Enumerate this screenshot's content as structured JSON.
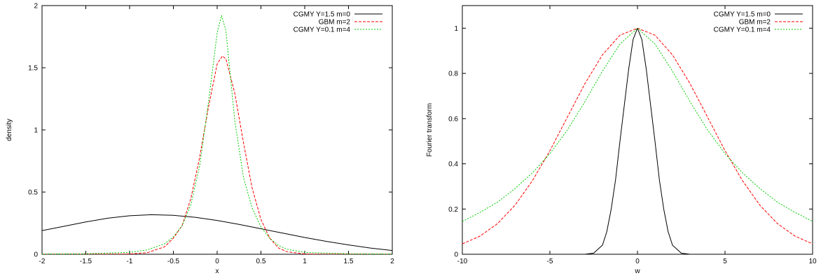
{
  "chart_data": [
    {
      "type": "line",
      "title": "",
      "xlabel": "x",
      "ylabel": "density",
      "xlim": [
        -2,
        2
      ],
      "ylim": [
        0,
        2
      ],
      "xticks": [
        "-2",
        "-1.5",
        "-1",
        "-0.5",
        "0",
        "0.5",
        "1",
        "1.5",
        "2"
      ],
      "yticks": [
        "0",
        "0.5",
        "1",
        "1.5",
        "2"
      ],
      "grid": false,
      "legend_position": "top-right",
      "series": [
        {
          "name": "CGMY Y=1.5 m=0",
          "color": "#000000",
          "dash": "solid",
          "x": [
            -2,
            -1.75,
            -1.5,
            -1.25,
            -1.0,
            -0.75,
            -0.5,
            -0.25,
            0.0,
            0.25,
            0.5,
            0.75,
            1.0,
            1.25,
            1.5,
            1.75,
            2.0
          ],
          "y": [
            0.19,
            0.225,
            0.26,
            0.29,
            0.31,
            0.318,
            0.313,
            0.297,
            0.272,
            0.24,
            0.205,
            0.17,
            0.135,
            0.103,
            0.075,
            0.05,
            0.03
          ]
        },
        {
          "name": "GBM m=2",
          "color": "#ff0000",
          "dash": "dashed",
          "x": [
            -2,
            -1.5,
            -1.0,
            -0.8,
            -0.6,
            -0.5,
            -0.4,
            -0.3,
            -0.2,
            -0.1,
            0.0,
            0.06,
            0.1,
            0.2,
            0.3,
            0.4,
            0.5,
            0.6,
            0.7,
            0.8,
            1.0,
            1.5,
            2.0
          ],
          "y": [
            0,
            0,
            0.002,
            0.012,
            0.06,
            0.13,
            0.23,
            0.45,
            0.78,
            1.18,
            1.53,
            1.595,
            1.57,
            1.3,
            0.9,
            0.53,
            0.28,
            0.13,
            0.05,
            0.02,
            0.002,
            0,
            0
          ]
        },
        {
          "name": "CGMY Y=0.1 m=4",
          "color": "#00cc00",
          "dash": "dotted",
          "x": [
            -2,
            -1.5,
            -1.0,
            -0.8,
            -0.6,
            -0.5,
            -0.4,
            -0.3,
            -0.2,
            -0.1,
            0.0,
            0.05,
            0.1,
            0.2,
            0.3,
            0.4,
            0.5,
            0.6,
            0.7,
            0.8,
            1.0,
            1.5,
            2.0
          ],
          "y": [
            0.002,
            0.004,
            0.015,
            0.035,
            0.085,
            0.14,
            0.23,
            0.4,
            0.71,
            1.22,
            1.78,
            1.92,
            1.8,
            1.08,
            0.62,
            0.37,
            0.22,
            0.13,
            0.07,
            0.04,
            0.015,
            0.004,
            0.002
          ]
        }
      ]
    },
    {
      "type": "line",
      "title": "",
      "xlabel": "w",
      "ylabel": "Fourier transform",
      "xlim": [
        -10,
        10
      ],
      "ylim": [
        0,
        1.1
      ],
      "xticks": [
        "-10",
        "-5",
        "0",
        "5",
        "10"
      ],
      "yticks": [
        "0",
        "0.2",
        "0.4",
        "0.6",
        "0.8",
        "1"
      ],
      "grid": false,
      "legend_position": "top-right",
      "series": [
        {
          "name": "CGMY Y=1.5 m=0",
          "color": "#000000",
          "dash": "solid",
          "x": [
            -10,
            -3,
            -2.5,
            -2,
            -1.75,
            -1.5,
            -1.25,
            -1,
            -0.75,
            -0.5,
            -0.25,
            0,
            0.25,
            0.5,
            0.75,
            1,
            1.25,
            1.5,
            1.75,
            2,
            2.5,
            3,
            10
          ],
          "y": [
            0,
            0.0,
            0.005,
            0.04,
            0.1,
            0.2,
            0.33,
            0.5,
            0.66,
            0.82,
            0.95,
            1.0,
            0.95,
            0.82,
            0.66,
            0.5,
            0.33,
            0.2,
            0.1,
            0.04,
            0.005,
            0.0,
            0
          ]
        },
        {
          "name": "GBM m=2",
          "color": "#ff0000",
          "dash": "dashed",
          "x": [
            -10,
            -9,
            -8,
            -7,
            -6,
            -5,
            -4,
            -3,
            -2,
            -1,
            0,
            1,
            2,
            3,
            4,
            5,
            6,
            7,
            8,
            9,
            10
          ],
          "y": [
            0.046,
            0.08,
            0.135,
            0.216,
            0.325,
            0.458,
            0.607,
            0.755,
            0.882,
            0.969,
            1.0,
            0.969,
            0.882,
            0.755,
            0.607,
            0.458,
            0.325,
            0.216,
            0.135,
            0.08,
            0.046
          ]
        },
        {
          "name": "CGMY Y=0.1 m=4",
          "color": "#00cc00",
          "dash": "dotted",
          "x": [
            -10,
            -9,
            -8,
            -7,
            -6,
            -5,
            -4,
            -3,
            -2,
            -1,
            0,
            1,
            2,
            3,
            4,
            5,
            6,
            7,
            8,
            9,
            10
          ],
          "y": [
            0.145,
            0.185,
            0.23,
            0.29,
            0.36,
            0.445,
            0.55,
            0.675,
            0.81,
            0.93,
            1.0,
            0.93,
            0.81,
            0.675,
            0.55,
            0.445,
            0.36,
            0.29,
            0.23,
            0.185,
            0.145
          ]
        }
      ]
    }
  ]
}
